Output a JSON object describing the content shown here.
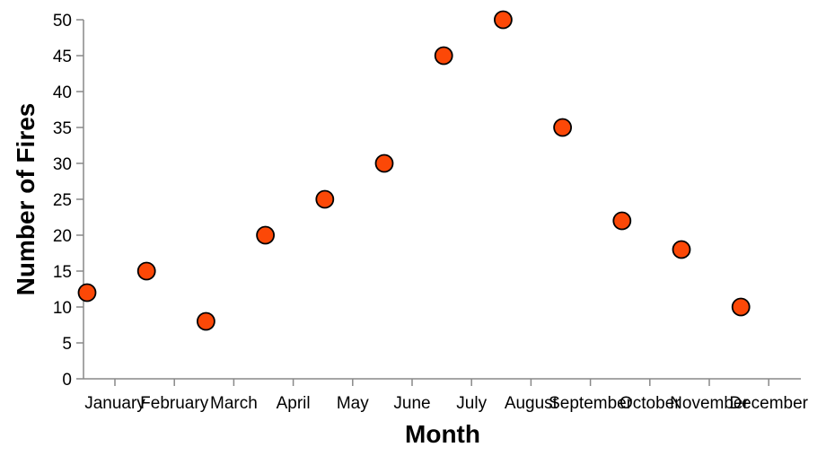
{
  "chart_data": {
    "type": "scatter",
    "categories": [
      "January",
      "February",
      "March",
      "April",
      "May",
      "June",
      "July",
      "August",
      "September",
      "October",
      "November",
      "December"
    ],
    "values": [
      12,
      15,
      8,
      20,
      25,
      30,
      45,
      50,
      35,
      22,
      18,
      10
    ],
    "xlabel": "Month",
    "ylabel": "Number of Fires",
    "ylim": [
      0,
      50
    ],
    "yticks": [
      0,
      5,
      10,
      15,
      20,
      25,
      30,
      35,
      40,
      45,
      50
    ],
    "grid": false,
    "point_color": "#FC4807",
    "point_stroke": "#000000",
    "axis_color": "#888888"
  }
}
